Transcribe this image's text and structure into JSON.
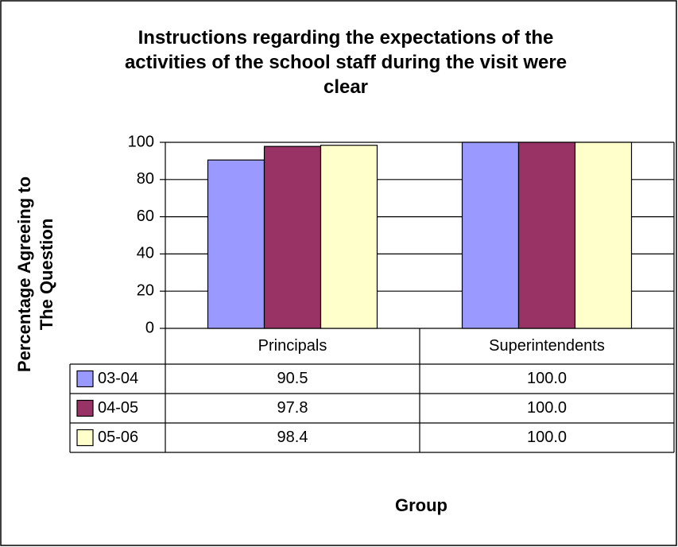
{
  "chart_data": {
    "type": "bar",
    "title": "Instructions regarding the expectations of the activities of the school staff during the visit were clear",
    "y_label": "Percentage Agreeing to The Question",
    "x_label": "Group",
    "categories": [
      "Principals",
      "Superintendents"
    ],
    "series": [
      {
        "name": "03-04",
        "color": "#9999ff",
        "values": [
          90.5,
          100
        ],
        "value_labels": [
          "90.5",
          "100.0"
        ]
      },
      {
        "name": "04-05",
        "color": "#993366",
        "values": [
          97.8,
          100
        ],
        "value_labels": [
          "97.8",
          "100.0"
        ]
      },
      {
        "name": "05-06",
        "color": "#ffffcc",
        "values": [
          98.4,
          100
        ],
        "value_labels": [
          "98.4",
          "100.0"
        ]
      }
    ],
    "ylim": [
      0,
      100
    ],
    "yticks": [
      0,
      20,
      40,
      60,
      80,
      100
    ],
    "grid": true
  }
}
